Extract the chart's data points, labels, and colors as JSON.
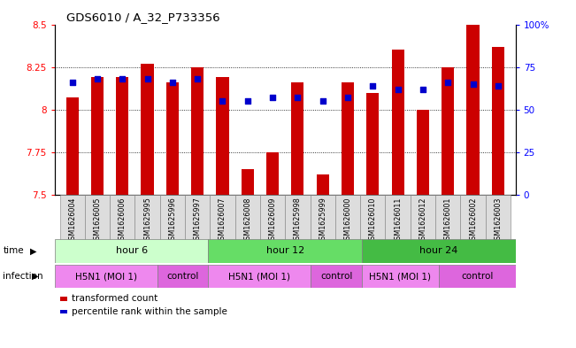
{
  "title": "GDS6010 / A_32_P733356",
  "samples": [
    "GSM1626004",
    "GSM1626005",
    "GSM1626006",
    "GSM1625995",
    "GSM1625996",
    "GSM1625997",
    "GSM1626007",
    "GSM1626008",
    "GSM1626009",
    "GSM1625998",
    "GSM1625999",
    "GSM1626000",
    "GSM1626010",
    "GSM1626011",
    "GSM1626012",
    "GSM1626001",
    "GSM1626002",
    "GSM1626003"
  ],
  "bar_values": [
    8.07,
    8.19,
    8.19,
    8.27,
    8.16,
    8.25,
    8.19,
    7.65,
    7.75,
    8.16,
    7.62,
    8.16,
    8.1,
    8.35,
    8.0,
    8.25,
    8.5,
    8.37
  ],
  "blue_values": [
    66,
    68,
    68,
    68,
    66,
    68,
    55,
    55,
    57,
    57,
    55,
    57,
    64,
    62,
    62,
    66,
    65,
    64
  ],
  "ylim_left": [
    7.5,
    8.5
  ],
  "ylim_right": [
    0,
    100
  ],
  "yticks_left": [
    7.5,
    7.75,
    8.0,
    8.25,
    8.5
  ],
  "yticks_right": [
    0,
    25,
    50,
    75,
    100
  ],
  "ytick_labels_left": [
    "7.5",
    "7.75",
    "8",
    "8.25",
    "8.5"
  ],
  "ytick_labels_right": [
    "0",
    "25",
    "50",
    "75",
    "100%"
  ],
  "grid_values": [
    7.75,
    8.0,
    8.25
  ],
  "time_groups": [
    {
      "label": "hour 6",
      "start": 0,
      "end": 6,
      "color": "#ccffcc"
    },
    {
      "label": "hour 12",
      "start": 6,
      "end": 12,
      "color": "#66dd66"
    },
    {
      "label": "hour 24",
      "start": 12,
      "end": 18,
      "color": "#44bb44"
    }
  ],
  "infection_groups": [
    {
      "label": "H5N1 (MOI 1)",
      "start": 0,
      "end": 4,
      "color": "#ee88ee"
    },
    {
      "label": "control",
      "start": 4,
      "end": 6,
      "color": "#dd66dd"
    },
    {
      "label": "H5N1 (MOI 1)",
      "start": 6,
      "end": 10,
      "color": "#ee88ee"
    },
    {
      "label": "control",
      "start": 10,
      "end": 12,
      "color": "#dd66dd"
    },
    {
      "label": "H5N1 (MOI 1)",
      "start": 12,
      "end": 15,
      "color": "#ee88ee"
    },
    {
      "label": "control",
      "start": 15,
      "end": 18,
      "color": "#dd66dd"
    }
  ],
  "bar_color": "#cc0000",
  "dot_color": "#0000cc",
  "bar_width": 0.5,
  "base_value": 7.5,
  "legend_items": [
    {
      "label": "transformed count",
      "color": "#cc0000"
    },
    {
      "label": "percentile rank within the sample",
      "color": "#0000cc"
    }
  ]
}
